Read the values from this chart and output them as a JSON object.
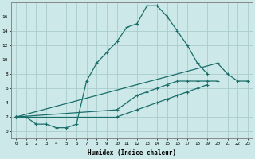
{
  "xlabel": "Humidex (Indice chaleur)",
  "bg_color": "#cce8e8",
  "grid_color": "#aacccc",
  "line_color": "#1a6e6a",
  "lines": [
    {
      "x": [
        0,
        1,
        2,
        3,
        4,
        5,
        6,
        7,
        8,
        9,
        10,
        11,
        12,
        13,
        14,
        15,
        16,
        17,
        18,
        19,
        20
      ],
      "y": [
        2,
        2,
        1,
        1,
        0.5,
        0.5,
        1,
        7,
        9.5,
        11,
        12.5,
        14.5,
        15,
        17.5,
        17.5,
        16,
        14,
        12,
        9.5,
        8,
        null
      ]
    },
    {
      "x": [
        0,
        1,
        2,
        3,
        4,
        5,
        6,
        7,
        8,
        9,
        10,
        11,
        12,
        13,
        14,
        15,
        16,
        17,
        18,
        19,
        20,
        21,
        22,
        23
      ],
      "y": [
        2,
        null,
        null,
        null,
        null,
        null,
        null,
        null,
        null,
        null,
        null,
        null,
        null,
        null,
        null,
        null,
        null,
        null,
        null,
        null,
        9.5,
        8,
        7,
        7
      ]
    },
    {
      "x": [
        0,
        1,
        2,
        3,
        4,
        5,
        6,
        7,
        8,
        9,
        10,
        11,
        12,
        13,
        14,
        15,
        16,
        17,
        18,
        19,
        20,
        21,
        22,
        23
      ],
      "y": [
        2,
        null,
        null,
        null,
        null,
        null,
        null,
        null,
        null,
        null,
        3,
        4,
        5,
        5.5,
        6,
        6.5,
        7,
        7,
        7,
        7,
        7,
        null,
        null,
        7
      ]
    },
    {
      "x": [
        0,
        1,
        2,
        3,
        4,
        5,
        6,
        7,
        8,
        9,
        10,
        11,
        12,
        13,
        14,
        15,
        16,
        17,
        18,
        19,
        20,
        21,
        22,
        23
      ],
      "y": [
        2,
        null,
        null,
        null,
        null,
        null,
        null,
        null,
        null,
        null,
        2,
        2.5,
        3,
        3.5,
        4,
        4.5,
        5,
        5.5,
        6,
        6.5,
        null,
        null,
        null,
        7
      ]
    }
  ],
  "ylim": [
    -1,
    18
  ],
  "xlim": [
    -0.5,
    23.5
  ],
  "yticks": [
    0,
    2,
    4,
    6,
    8,
    10,
    12,
    14,
    16
  ],
  "xticks": [
    0,
    1,
    2,
    3,
    4,
    5,
    6,
    7,
    8,
    9,
    10,
    11,
    12,
    13,
    14,
    15,
    16,
    17,
    18,
    19,
    20,
    21,
    22,
    23
  ]
}
